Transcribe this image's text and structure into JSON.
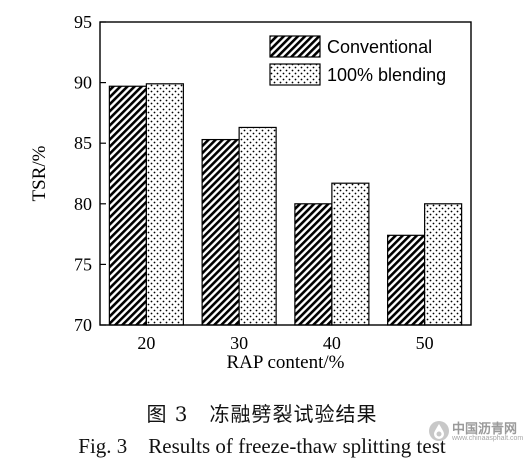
{
  "chart_data": {
    "type": "bar",
    "xlabel": "RAP content/%",
    "ylabel": "TSR/%",
    "categories": [
      "20",
      "30",
      "40",
      "50"
    ],
    "ylim": [
      70,
      95
    ],
    "yticks": [
      70,
      75,
      80,
      85,
      90,
      95
    ],
    "series": [
      {
        "name": "Conventional",
        "values": [
          89.7,
          85.3,
          80.0,
          77.4
        ],
        "pattern": "diagonal-hatch"
      },
      {
        "name": "100% blending",
        "values": [
          89.9,
          86.3,
          81.7,
          80.0
        ],
        "pattern": "dots"
      }
    ],
    "legend_position": "top-right",
    "grid": false
  },
  "captions": {
    "cn": "图 3　冻融劈裂试验结果",
    "en": "Fig. 3　Results of freeze-thaw splitting test"
  },
  "watermark": {
    "text": "中国沥青网",
    "subtext": "www.chinaasphalt.com",
    "icon": "asphalt-drop-icon"
  },
  "colors": {
    "bar_stroke": "#000000",
    "watermark": "#9a9a9a"
  }
}
